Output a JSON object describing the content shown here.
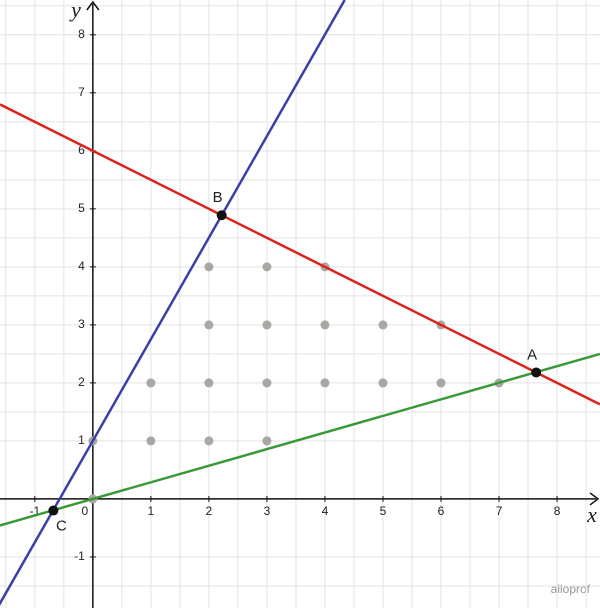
{
  "chart_data": {
    "type": "line",
    "x_label": "x",
    "y_label": "y",
    "xlim": [
      -1.6,
      8.74
    ],
    "ylim": [
      -1.88,
      8.6
    ],
    "xticks": [
      -1,
      0,
      1,
      2,
      3,
      4,
      5,
      6,
      7,
      8
    ],
    "yticks": [
      -1,
      1,
      2,
      3,
      4,
      5,
      6,
      7,
      8
    ],
    "grid": true,
    "series": [
      {
        "color": "#e0201b",
        "x": [
          -1.6,
          8.74
        ],
        "values": [
          6.8,
          1.63
        ]
      },
      {
        "color": "#3b3fa8",
        "x": [
          -1.646,
          4.34
        ],
        "values": [
          -1.88,
          8.6
        ]
      },
      {
        "color": "#3a9a3a",
        "x": [
          -1.6,
          8.74
        ],
        "values": [
          -0.457,
          2.5
        ]
      }
    ],
    "points": [
      {
        "label": "A",
        "x": 7.64,
        "y": 2.18
      },
      {
        "label": "B",
        "x": 2.22,
        "y": 4.89
      },
      {
        "label": "C",
        "x": -0.68,
        "y": -0.2
      }
    ],
    "lattice": {
      "color": "#aaa7a2",
      "x": [
        0,
        0,
        1,
        2,
        3,
        1,
        2,
        3,
        4,
        5,
        6,
        7,
        2,
        3,
        4,
        5,
        6,
        2,
        3,
        4
      ],
      "y": [
        1,
        0,
        1,
        1,
        1,
        2,
        2,
        2,
        2,
        2,
        2,
        2,
        3,
        3,
        3,
        3,
        3,
        4,
        4,
        4
      ]
    },
    "watermark": "alloprof"
  }
}
